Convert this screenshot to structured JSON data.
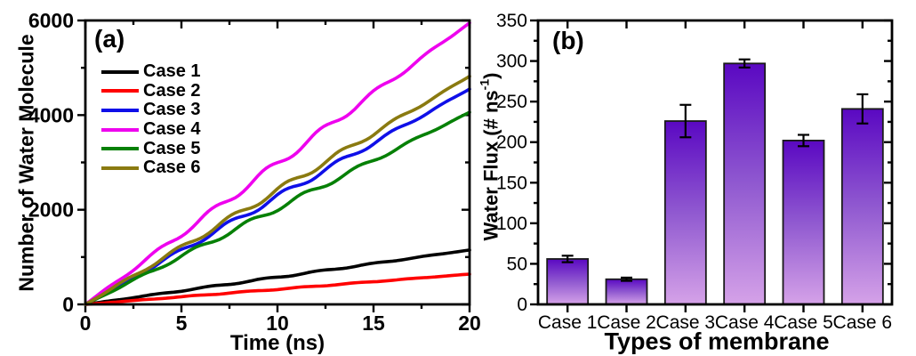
{
  "background": "#ffffff",
  "chart_data": [
    {
      "type": "line",
      "panel_label": "(a)",
      "xlabel": "Time (ns)",
      "ylabel": "Number of Water Molecule",
      "xlim": [
        0,
        20
      ],
      "ylim": [
        0,
        6000
      ],
      "xticks": [
        0,
        5,
        10,
        15,
        20
      ],
      "yticks": [
        0,
        2000,
        4000,
        6000
      ],
      "x_minor_step": 2.5,
      "y_minor_step": 1000,
      "grid": false,
      "legend_position": "upper-left-inside",
      "series_note": "cumulative curves rise approximately linearly from the origin to the t=20 ns end value",
      "series": [
        {
          "name": "Case 1",
          "color": "#000000",
          "x": [
            0,
            20
          ],
          "y": [
            0,
            1150
          ]
        },
        {
          "name": "Case 2",
          "color": "#ff0000",
          "x": [
            0,
            20
          ],
          "y": [
            0,
            640
          ]
        },
        {
          "name": "Case 3",
          "color": "#0f0fe8",
          "x": [
            0,
            20
          ],
          "y": [
            0,
            4550
          ]
        },
        {
          "name": "Case 4",
          "color": "#ee00ee",
          "x": [
            0,
            20
          ],
          "y": [
            0,
            5950
          ]
        },
        {
          "name": "Case 5",
          "color": "#068006",
          "x": [
            0,
            20
          ],
          "y": [
            0,
            4060
          ]
        },
        {
          "name": "Case 6",
          "color": "#8a7a10",
          "x": [
            0,
            20
          ],
          "y": [
            0,
            4820
          ]
        }
      ]
    },
    {
      "type": "bar",
      "panel_label": "(b)",
      "xlabel": "Types of membrane",
      "ylabel": "Water Flux (# ns⁻¹)",
      "ylabel_parts": {
        "pre": "Water Flux (# ns",
        "sup": "-1",
        "post": ")"
      },
      "categories": [
        "Case 1",
        "Case 2",
        "Case 3",
        "Case 4",
        "Case 5",
        "Case 6"
      ],
      "values": [
        56,
        31,
        226,
        297,
        202,
        241
      ],
      "errors": [
        4,
        2,
        20,
        5,
        7,
        18
      ],
      "ylim": [
        0,
        350
      ],
      "yticks": [
        0,
        50,
        100,
        150,
        200,
        250,
        300,
        350
      ],
      "y_minor_step": 25,
      "grid": false,
      "bar_style": {
        "gradient_top": "#5a08c2",
        "gradient_mid": "#9059d0",
        "gradient_bottom": "#d5a2e8",
        "outline": "#1a1a1a"
      }
    }
  ]
}
